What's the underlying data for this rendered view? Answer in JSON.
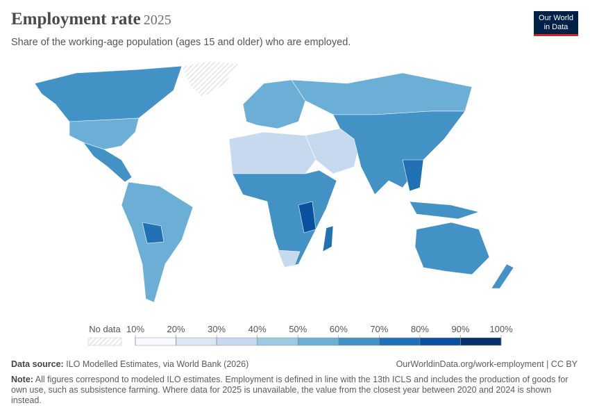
{
  "header": {
    "title": "Employment rate",
    "year": "2025",
    "subtitle": "Share of the working-age population (ages 15 and older) who are employed."
  },
  "logo": {
    "line1": "Our World",
    "line2": "in Data"
  },
  "chart_data": {
    "type": "choropleth",
    "legend": {
      "no_data": "No data",
      "bins": [
        {
          "value": 10,
          "label": "10%"
        },
        {
          "value": 20,
          "label": "20%"
        },
        {
          "value": 30,
          "label": "30%"
        },
        {
          "value": 40,
          "label": "40%"
        },
        {
          "value": 50,
          "label": "50%"
        },
        {
          "value": 60,
          "label": "60%"
        },
        {
          "value": 70,
          "label": "70%"
        },
        {
          "value": 80,
          "label": "80%"
        },
        {
          "value": 90,
          "label": "90%"
        },
        {
          "value": 100,
          "label": "100%"
        }
      ],
      "colors": [
        "#f7fbff",
        "#dbe7f5",
        "#c6d9ee",
        "#9ecae1",
        "#6baed6",
        "#4292c6",
        "#2171b5",
        "#08519c",
        "#08306b"
      ]
    }
  },
  "footer": {
    "source_label": "Data source:",
    "source": "ILO Modelled Estimates, via World Bank (2026)",
    "url": "OurWorldinData.org/work-employment | CC BY",
    "note_label": "Note:",
    "note": "All figures correspond to modeled ILO estimates. Employment is defined in line with the 13th ICLS and includes the production of goods for own use, such as subsistence farming. Where data for 2025 is unavailable, the value from the closest year between 2020 and 2024 is shown instead."
  }
}
